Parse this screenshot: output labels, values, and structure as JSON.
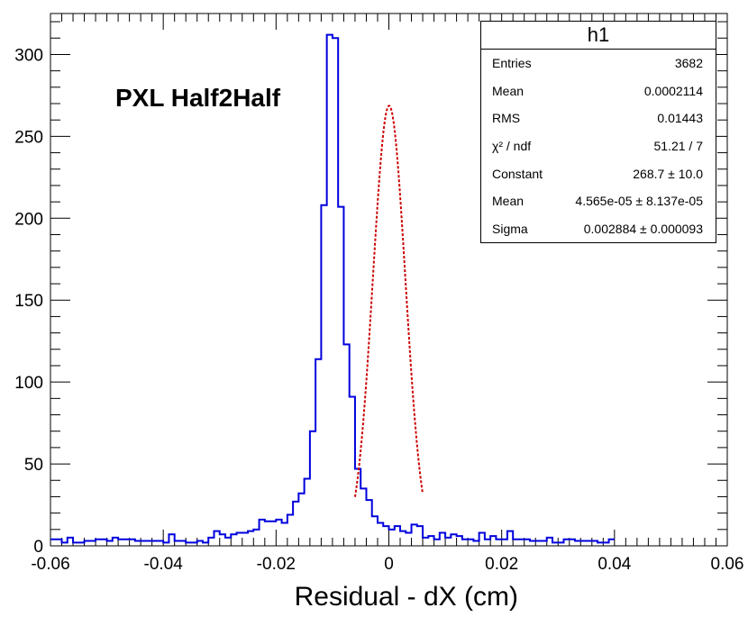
{
  "chart_data": {
    "type": "histogram",
    "title": "PXL Half2Half",
    "xlabel": "Residual - dX (cm)",
    "ylabel": "",
    "xlim": [
      -0.06,
      0.06
    ],
    "ylim": [
      0,
      325
    ],
    "x_ticks": [
      "-0.06",
      "-0.04",
      "-0.02",
      "0",
      "0.02",
      "0.04",
      "0.06"
    ],
    "y_ticks": [
      "0",
      "50",
      "100",
      "150",
      "200",
      "250",
      "300"
    ],
    "bin_edges_start": -0.06,
    "bin_width": 0.001,
    "counts": [
      4,
      4,
      2,
      5,
      2,
      2,
      3,
      3,
      4,
      4,
      3,
      5,
      4,
      4,
      4,
      3,
      3,
      3,
      3,
      3,
      2,
      7,
      3,
      3,
      2,
      2,
      3,
      2,
      5,
      9,
      7,
      5,
      7,
      8,
      8,
      9,
      10,
      16,
      15,
      15,
      16,
      14,
      19,
      27,
      32,
      41,
      70,
      114,
      208,
      312,
      310,
      207,
      123,
      91,
      47,
      35,
      28,
      18,
      14,
      12,
      10,
      12,
      9,
      8,
      13,
      12,
      5,
      6,
      4,
      8,
      5,
      7,
      6,
      4,
      4,
      3,
      8,
      4,
      6,
      4,
      4,
      9,
      4,
      4,
      4,
      3,
      3,
      3,
      5,
      2,
      2,
      4,
      4,
      3,
      3,
      3,
      3,
      2,
      2,
      4
    ],
    "fit": {
      "type": "gaus",
      "constant": 268.7,
      "mean": 4.565e-05,
      "sigma": 0.002884,
      "range": [
        -0.006,
        0.006
      ],
      "color": "#cc0000"
    },
    "hist_color": "#0000dd",
    "stats": {
      "title": "h1",
      "rows": [
        {
          "key": "Entries",
          "value": "3682"
        },
        {
          "key": "Mean",
          "value": "0.0002114"
        },
        {
          "key": "RMS",
          "value": "0.01443"
        },
        {
          "key": "χ² / ndf",
          "value": "51.21 / 7"
        },
        {
          "key": "Constant",
          "value": "268.7 ± 10.0"
        },
        {
          "key": "Mean",
          "value": "4.565e-05 ± 8.137e-05"
        },
        {
          "key": "Sigma",
          "value": "0.002884 ± 0.000093"
        }
      ]
    },
    "grid": false,
    "legend_placement": "top-right"
  }
}
